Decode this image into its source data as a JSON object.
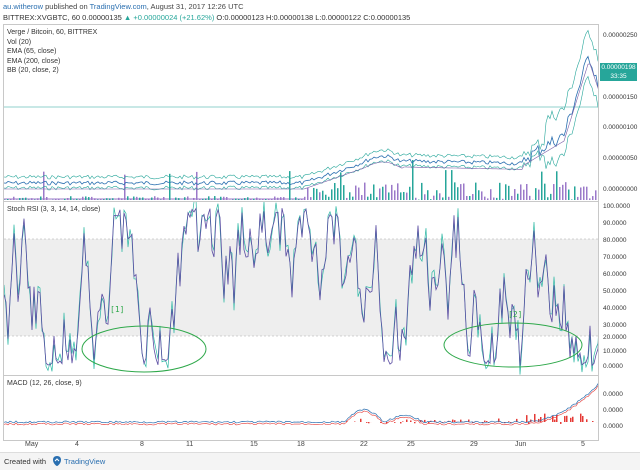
{
  "header": {
    "user": "au.witherow",
    "published_on": "published on",
    "site": "TradingView.com",
    "date": ", August 31, 2017 12:26 UTC",
    "symbol_line": "BITTREX:XVGBTC, 60  0.00000135",
    "change": "▲ +0.00000024 (+21.62%)",
    "ohlc": "O:0.00000123 H:0.00000138 L:0.00000122 C:0.00000135"
  },
  "price_pane": {
    "legend": [
      "Verge / Bitcoin, 60, BITTREX",
      "Vol (20)",
      "EMA (65, close)",
      "EMA (200, close)",
      "BB (20, close, 2)"
    ],
    "axis": [
      "0.00000250",
      "0.00000200",
      "0.00000150",
      "0.00000100",
      "0.00000050",
      "0.00000000"
    ],
    "price_tag": "0.00000198",
    "time_tag": "33:35"
  },
  "rsi_pane": {
    "legend": "Stoch RSI (3, 3, 14, 14, close)",
    "axis": [
      "100.0000",
      "90.0000",
      "80.0000",
      "70.0000",
      "60.0000",
      "50.0000",
      "40.0000",
      "30.0000",
      "20.0000",
      "10.0000",
      "0.0000"
    ],
    "annotation_1": "[1]",
    "annotation_2": "[2]"
  },
  "macd_pane": {
    "legend": "MACD (12, 26, close, 9)",
    "axis": [
      "0.0000",
      "0.0000",
      "0.0000"
    ]
  },
  "xaxis": [
    "May",
    "4",
    "8",
    "11",
    "15",
    "18",
    "22",
    "25",
    "29",
    "Jun",
    "5"
  ],
  "footer": {
    "created_with": "Created with",
    "brand": "TradingView"
  },
  "colors": {
    "up": "#26a69a",
    "stoch_k": "#5b4ea3",
    "stoch_d": "#2bb7a3",
    "annotation": "#2ea84a",
    "macd_hist": "#e53935"
  }
}
